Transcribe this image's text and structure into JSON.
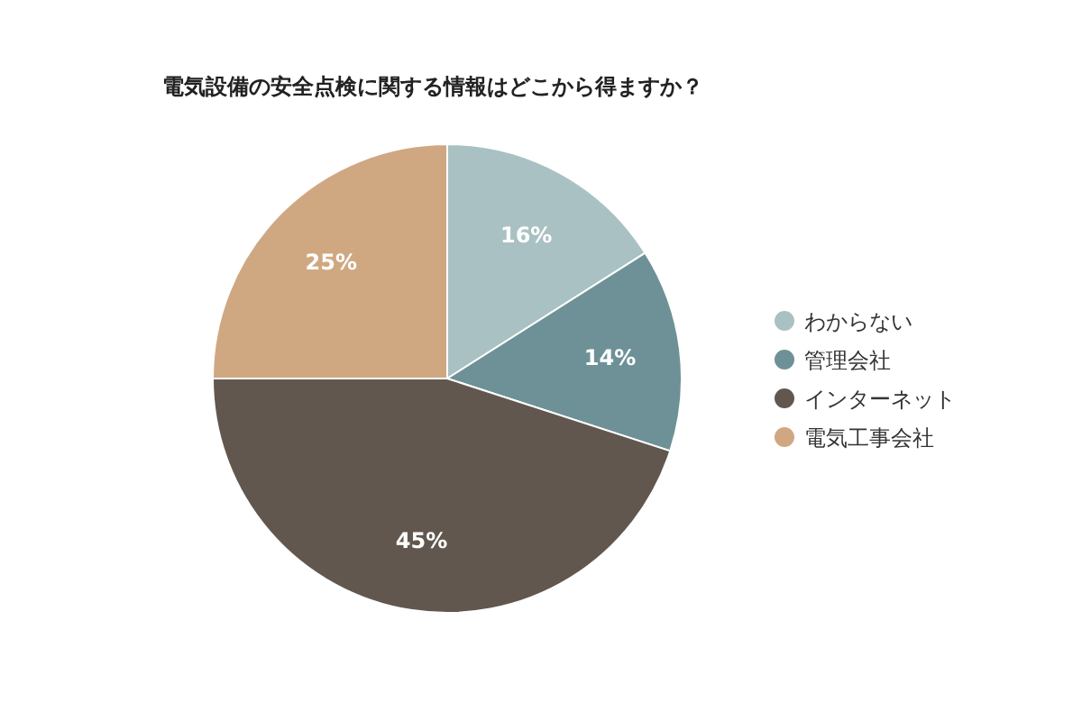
{
  "chart_data": {
    "type": "pie",
    "title": "電気設備の安全点検に関する情報はどこから得ますか？",
    "categories": [
      "わからない",
      "管理会社",
      "インターネット",
      "電気工事会社"
    ],
    "values": [
      16,
      14,
      45,
      25
    ],
    "colors": [
      "#a9c1c2",
      "#6d9196",
      "#62574e",
      "#cfa882"
    ],
    "value_labels": [
      "16%",
      "14%",
      "45%",
      "25%"
    ],
    "legend": "right"
  }
}
